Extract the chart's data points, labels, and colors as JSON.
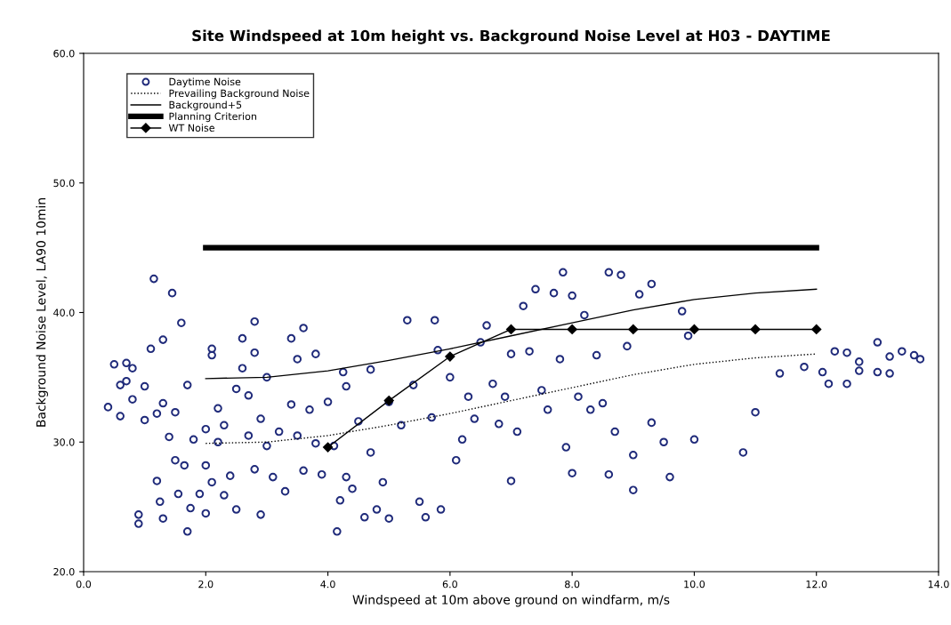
{
  "chart_data": {
    "type": "scatter",
    "title": "Site Windspeed at 10m height vs. Background Noise Level at H03 - DAYTIME",
    "xlabel": "Windspeed at 10m above ground on windfarm, m/s",
    "ylabel": "Background Noise Level, LA90 10min",
    "xlim": [
      0,
      14
    ],
    "ylim": [
      20,
      60
    ],
    "xticks": [
      {
        "value": 0,
        "label": "0.0"
      },
      {
        "value": 2,
        "label": "2.0"
      },
      {
        "value": 4,
        "label": "4.0"
      },
      {
        "value": 6,
        "label": "6.0"
      },
      {
        "value": 8,
        "label": "8.0"
      },
      {
        "value": 10,
        "label": "10.0"
      },
      {
        "value": 12,
        "label": "12.0"
      },
      {
        "value": 14,
        "label": "14.0"
      }
    ],
    "yticks": [
      {
        "value": 20,
        "label": "20.0"
      },
      {
        "value": 30,
        "label": "30.0"
      },
      {
        "value": 40,
        "label": "40.0"
      },
      {
        "value": 50,
        "label": "50.0"
      },
      {
        "value": 60,
        "label": "60.0"
      }
    ],
    "grid": false,
    "legend": "top left",
    "ref_lines": [
      {
        "axis": "y",
        "value": 45,
        "label": "Planning Criterion",
        "color": "#000000",
        "line_style": "solid"
      }
    ],
    "series": [
      {
        "name": "Daytime Noise",
        "marker": "circle",
        "color": "#1f2a7a",
        "x": [
          0.4,
          0.5,
          0.6,
          0.6,
          0.7,
          0.7,
          0.8,
          0.8,
          0.9,
          0.9,
          1.0,
          1.0,
          1.1,
          1.15,
          1.2,
          1.2,
          1.25,
          1.3,
          1.3,
          1.3,
          1.4,
          1.45,
          1.5,
          1.5,
          1.55,
          1.6,
          1.65,
          1.7,
          1.7,
          1.75,
          1.8,
          1.9,
          2.0,
          2.0,
          2.0,
          2.1,
          2.1,
          2.1,
          2.2,
          2.2,
          2.3,
          2.3,
          2.4,
          2.5,
          2.5,
          2.6,
          2.6,
          2.7,
          2.7,
          2.8,
          2.8,
          2.8,
          2.9,
          2.9,
          3.0,
          3.0,
          3.1,
          3.2,
          3.3,
          3.4,
          3.4,
          3.5,
          3.5,
          3.6,
          3.6,
          3.7,
          3.8,
          3.8,
          3.9,
          4.0,
          4.1,
          4.15,
          4.2,
          4.25,
          4.3,
          4.3,
          4.4,
          4.5,
          4.6,
          4.7,
          4.7,
          4.8,
          4.9,
          5.0,
          5.0,
          5.2,
          5.3,
          5.4,
          5.5,
          5.6,
          5.7,
          5.75,
          5.8,
          5.85,
          6.0,
          6.1,
          6.2,
          6.3,
          6.4,
          6.5,
          6.6,
          6.7,
          6.8,
          6.9,
          7.0,
          7.0,
          7.1,
          7.2,
          7.3,
          7.4,
          7.5,
          7.6,
          7.7,
          7.8,
          7.85,
          7.9,
          8.0,
          8.0,
          8.1,
          8.2,
          8.3,
          8.4,
          8.5,
          8.6,
          8.6,
          8.7,
          8.8,
          8.9,
          9.0,
          9.0,
          9.1,
          9.3,
          9.3,
          9.5,
          9.6,
          9.8,
          9.9,
          10.0,
          10.8,
          11.0,
          11.4,
          11.8,
          12.1,
          12.2,
          12.3,
          12.5,
          12.5,
          12.7,
          12.7,
          13.0,
          13.0,
          13.2,
          13.2,
          13.4,
          13.6,
          13.7
        ],
        "values": [
          32.7,
          36.0,
          32.0,
          34.4,
          36.1,
          34.7,
          33.3,
          35.7,
          24.4,
          23.7,
          34.3,
          31.7,
          37.2,
          42.6,
          32.2,
          27.0,
          25.4,
          37.9,
          33.0,
          24.1,
          30.4,
          41.5,
          32.3,
          28.6,
          26.0,
          39.2,
          28.2,
          34.4,
          23.1,
          24.9,
          30.2,
          26.0,
          31.0,
          28.2,
          24.5,
          37.2,
          36.7,
          26.9,
          30.0,
          32.6,
          31.3,
          25.9,
          27.4,
          24.8,
          34.1,
          38.0,
          35.7,
          30.5,
          33.6,
          39.3,
          36.9,
          27.9,
          31.8,
          24.4,
          35.0,
          29.7,
          27.3,
          30.8,
          26.2,
          32.9,
          38.0,
          36.4,
          30.5,
          27.8,
          38.8,
          32.5,
          29.9,
          36.8,
          27.5,
          33.1,
          29.7,
          23.1,
          25.5,
          35.4,
          34.3,
          27.3,
          26.4,
          31.6,
          24.2,
          35.6,
          29.2,
          24.8,
          26.9,
          33.1,
          24.1,
          31.3,
          39.4,
          34.4,
          25.4,
          24.2,
          31.9,
          39.4,
          37.1,
          24.8,
          35.0,
          28.6,
          30.2,
          33.5,
          31.8,
          37.7,
          39.0,
          34.5,
          31.4,
          33.5,
          36.8,
          27.0,
          30.8,
          40.5,
          37.0,
          41.8,
          34.0,
          32.5,
          41.5,
          36.4,
          43.1,
          29.6,
          41.3,
          27.6,
          33.5,
          39.8,
          32.5,
          36.7,
          33.0,
          43.1,
          27.5,
          30.8,
          42.9,
          37.4,
          29.0,
          26.3,
          41.4,
          42.2,
          31.5,
          30.0,
          27.3,
          40.1,
          38.2,
          30.2,
          29.2,
          32.3,
          35.3,
          35.8,
          35.4,
          34.5,
          37.0,
          36.9,
          34.5,
          36.2,
          35.5,
          37.7,
          35.4,
          36.6,
          35.3,
          37.0,
          36.7,
          36.4
        ]
      },
      {
        "name": "Prevailing Background Noise",
        "type": "line",
        "line_style": "dotted",
        "color": "#000000",
        "x": [
          2,
          3,
          4,
          5,
          6,
          7,
          8,
          9,
          10,
          11,
          12
        ],
        "values": [
          29.9,
          30.0,
          30.5,
          31.3,
          32.2,
          33.2,
          34.2,
          35.2,
          36.0,
          36.5,
          36.8
        ]
      },
      {
        "name": "Background+5",
        "type": "line",
        "line_style": "solid",
        "color": "#000000",
        "x": [
          2,
          3,
          4,
          5,
          6,
          7,
          8,
          9,
          10,
          11,
          12
        ],
        "values": [
          34.9,
          35.0,
          35.5,
          36.3,
          37.2,
          38.2,
          39.2,
          40.2,
          41.0,
          41.5,
          41.8
        ]
      },
      {
        "name": "WT Noise",
        "type": "line",
        "line_style": "solid",
        "marker": "diamond",
        "color": "#000000",
        "x": [
          4,
          5,
          6,
          7,
          8,
          9,
          10,
          11,
          12
        ],
        "values": [
          29.6,
          33.2,
          36.6,
          38.7,
          38.7,
          38.7,
          38.7,
          38.7,
          38.7
        ]
      }
    ]
  }
}
